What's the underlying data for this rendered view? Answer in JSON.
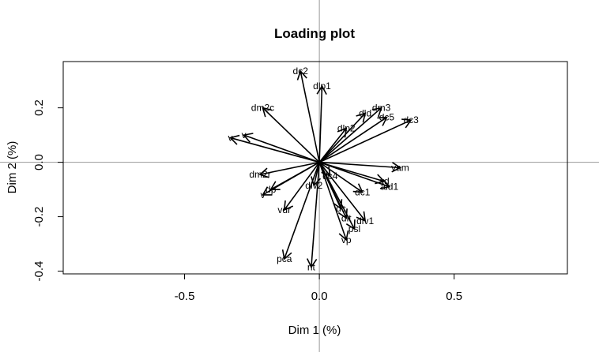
{
  "chart_data": {
    "type": "scatter",
    "title": "Loading plot",
    "xlabel": "Dim 1 (%)",
    "ylabel": "Dim 2 (%)",
    "xlim": [
      -0.95,
      0.92
    ],
    "ylim": [
      -0.41,
      0.37
    ],
    "xticks": [
      -0.5,
      0.0,
      0.5
    ],
    "xtick_labels": [
      "-0.5",
      "0.0",
      "0.5"
    ],
    "yticks": [
      -0.4,
      -0.2,
      0.0,
      0.2
    ],
    "ytick_labels": [
      "-0.4",
      "-0.2",
      "0.0",
      "0.2"
    ],
    "reference_lines": {
      "x": 0,
      "y": 0,
      "color": "#999999"
    },
    "arrow_color": "#000000",
    "variables": [
      {
        "name": "dc2",
        "x": -0.07,
        "y": 0.335
      },
      {
        "name": "dlp1",
        "x": 0.01,
        "y": 0.28
      },
      {
        "name": "dm2c",
        "x": -0.21,
        "y": 0.2
      },
      {
        "name": "dm3",
        "x": 0.23,
        "y": 0.2
      },
      {
        "name": "dld",
        "x": 0.17,
        "y": 0.18
      },
      {
        "name": "dc5",
        "x": 0.25,
        "y": 0.165
      },
      {
        "name": "dc3",
        "x": 0.34,
        "y": 0.155
      },
      {
        "name": "dlp2",
        "x": 0.1,
        "y": 0.125
      },
      {
        "name": "v",
        "x": -0.28,
        "y": 0.1
      },
      {
        "name": "v",
        "x": -0.33,
        "y": 0.09
      },
      {
        "name": "vam",
        "x": 0.3,
        "y": -0.02
      },
      {
        "name": "dm2r",
        "x": -0.22,
        "y": -0.045
      },
      {
        "name": "dc4",
        "x": 0.04,
        "y": -0.05
      },
      {
        "name": "ad",
        "x": 0.24,
        "y": -0.07
      },
      {
        "name": "ald1",
        "x": 0.26,
        "y": -0.09
      },
      {
        "name": "dlv2",
        "x": -0.02,
        "y": -0.085
      },
      {
        "name": "dc1",
        "x": 0.16,
        "y": -0.11
      },
      {
        "name": "dp",
        "x": -0.18,
        "y": -0.1
      },
      {
        "name": "v",
        "x": -0.21,
        "y": -0.12
      },
      {
        "name": "vdr",
        "x": -0.13,
        "y": -0.175
      },
      {
        "name": "dc",
        "x": 0.08,
        "y": -0.17
      },
      {
        "name": "dlt",
        "x": 0.1,
        "y": -0.205
      },
      {
        "name": "dlv1",
        "x": 0.17,
        "y": -0.215
      },
      {
        "name": "psl",
        "x": 0.13,
        "y": -0.245
      },
      {
        "name": "vp",
        "x": 0.1,
        "y": -0.285
      },
      {
        "name": "pca",
        "x": -0.13,
        "y": -0.355
      },
      {
        "name": "nt",
        "x": -0.03,
        "y": -0.385
      }
    ]
  }
}
